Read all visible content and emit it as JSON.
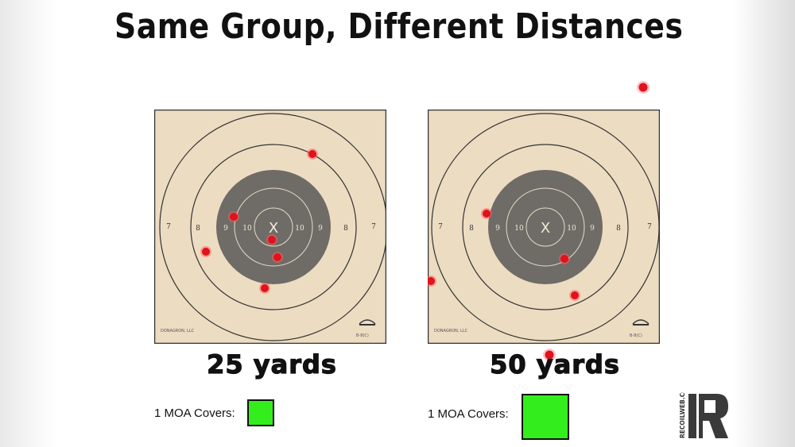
{
  "title": "Same Group, Different Distances",
  "targets": [
    {
      "distance_label": "25 yards",
      "moa_label": "1 MOA Covers:",
      "center_mark": "X",
      "ring_numbers": {
        "r10": "10",
        "r9": "9",
        "r8": "8",
        "r7": "7"
      },
      "model": "B-8(C)",
      "maker": "DONAGRON, LLC"
    },
    {
      "distance_label": "50 yards",
      "moa_label": "1 MOA Covers:",
      "center_mark": "X",
      "ring_numbers": {
        "r10": "10",
        "r9": "9",
        "r8": "8",
        "r7": "7"
      },
      "model": "B-8(C)",
      "maker": "DONAGRON, LLC"
    }
  ],
  "logo": {
    "name": "recoil-logo",
    "side_text": "RECOILWEB.COM"
  },
  "colors": {
    "paper": "#ecdcc2",
    "black_zone": "#6f6b66",
    "hit": "#e0121b",
    "moa_square": "#33ee1c"
  }
}
